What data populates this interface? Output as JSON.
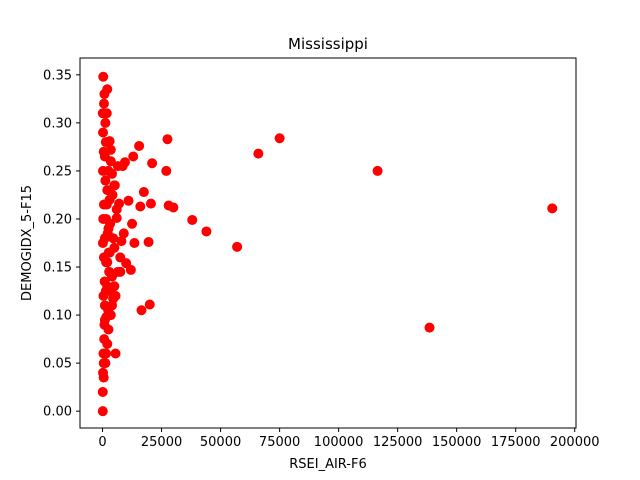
{
  "chart_data": {
    "type": "scatter",
    "title": "Mississippi",
    "xlabel": "RSEI_AIR-F6",
    "ylabel": "DEMOGIDX_5-F15",
    "xlim": [
      -9550,
      200550
    ],
    "ylim": [
      -0.0175,
      0.3675
    ],
    "xticks": [
      0,
      25000,
      50000,
      75000,
      100000,
      125000,
      150000,
      175000,
      200000
    ],
    "xtick_labels": [
      "0",
      "25000",
      "50000",
      "75000",
      "100000",
      "125000",
      "150000",
      "175000",
      "200000"
    ],
    "yticks": [
      0.0,
      0.05,
      0.1,
      0.15,
      0.2,
      0.25,
      0.3,
      0.35
    ],
    "ytick_labels": [
      "0.00",
      "0.05",
      "0.10",
      "0.15",
      "0.20",
      "0.25",
      "0.30",
      "0.35"
    ],
    "grid": false,
    "marker_color": "#ff0000",
    "series": [
      {
        "x": [
          190500,
          138500,
          116500,
          75000,
          66000,
          57000,
          44000,
          38000,
          30000,
          28000,
          27500,
          27000,
          21000,
          20500,
          20000,
          19500,
          17500,
          16500,
          16000,
          15500,
          13500,
          13000,
          12500,
          12000,
          11000,
          10000,
          9500,
          9000,
          8500,
          8000,
          7500,
          7000,
          6500,
          6000,
          5500,
          5000,
          5000,
          4500,
          4000,
          4000,
          3500,
          3500,
          3000,
          3000,
          2500,
          2500,
          2000,
          2000,
          1500,
          1500,
          1200,
          1000,
          1000,
          800,
          600,
          500,
          500,
          400,
          300,
          200,
          200,
          100,
          100,
          2000,
          6000,
          5000,
          3000,
          4000,
          3500,
          2500,
          1500,
          4500,
          7500,
          6500,
          5500,
          3000,
          2000,
          1000,
          600,
          400,
          200,
          100,
          1200,
          1800,
          2200,
          2800,
          3200,
          4200,
          5200,
          2600,
          1400,
          900,
          700,
          300,
          150,
          1000,
          1600,
          2400,
          500,
          1800,
          1200,
          2000,
          800,
          1400,
          600
        ],
        "y": [
          0.211,
          0.087,
          0.25,
          0.284,
          0.268,
          0.171,
          0.187,
          0.199,
          0.212,
          0.214,
          0.283,
          0.25,
          0.258,
          0.216,
          0.111,
          0.176,
          0.228,
          0.105,
          0.213,
          0.276,
          0.175,
          0.265,
          0.195,
          0.147,
          0.219,
          0.154,
          0.259,
          0.185,
          0.255,
          0.177,
          0.16,
          0.216,
          0.145,
          0.201,
          0.06,
          0.235,
          0.13,
          0.117,
          0.247,
          0.11,
          0.272,
          0.1,
          0.281,
          0.125,
          0.25,
          0.085,
          0.23,
          0.07,
          0.2,
          0.06,
          0.3,
          0.18,
          0.095,
          0.33,
          0.16,
          0.05,
          0.27,
          0.12,
          0.348,
          0.04,
          0.25,
          0.31,
          0.0,
          0.335,
          0.21,
          0.17,
          0.22,
          0.14,
          0.26,
          0.19,
          0.155,
          0.18,
          0.145,
          0.255,
          0.12,
          0.165,
          0.13,
          0.11,
          0.32,
          0.06,
          0.29,
          0.02,
          0.24,
          0.215,
          0.185,
          0.145,
          0.195,
          0.225,
          0.235,
          0.165,
          0.28,
          0.135,
          0.075,
          0.2,
          0.175,
          0.265,
          0.098,
          0.105,
          0.035,
          0.31,
          0.05,
          0.155,
          0.09,
          0.125,
          0.215
        ]
      }
    ]
  }
}
